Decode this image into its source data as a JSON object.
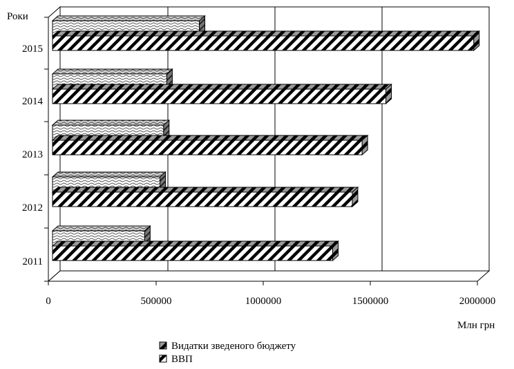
{
  "chart_data": {
    "type": "bar",
    "orientation": "horizontal",
    "categories": [
      "2011",
      "2012",
      "2013",
      "2014",
      "2015"
    ],
    "series": [
      {
        "name": "Видатки зведеного бюджету",
        "values": [
          433000,
          505000,
          522000,
          537000,
          690000
        ],
        "pattern": "wave"
      },
      {
        "name": "ВВП",
        "values": [
          1316600,
          1408900,
          1454900,
          1566700,
          1979500
        ],
        "pattern": "diagonal"
      }
    ],
    "xlim": [
      0,
      2000000
    ],
    "xticks": [
      "0",
      "500000",
      "1000000",
      "1500000",
      "2000000"
    ],
    "xlabel": "Млн грн",
    "ylabel": "Роки",
    "grid": "vertical",
    "legend_position": "bottom",
    "style": "3d-bars"
  }
}
